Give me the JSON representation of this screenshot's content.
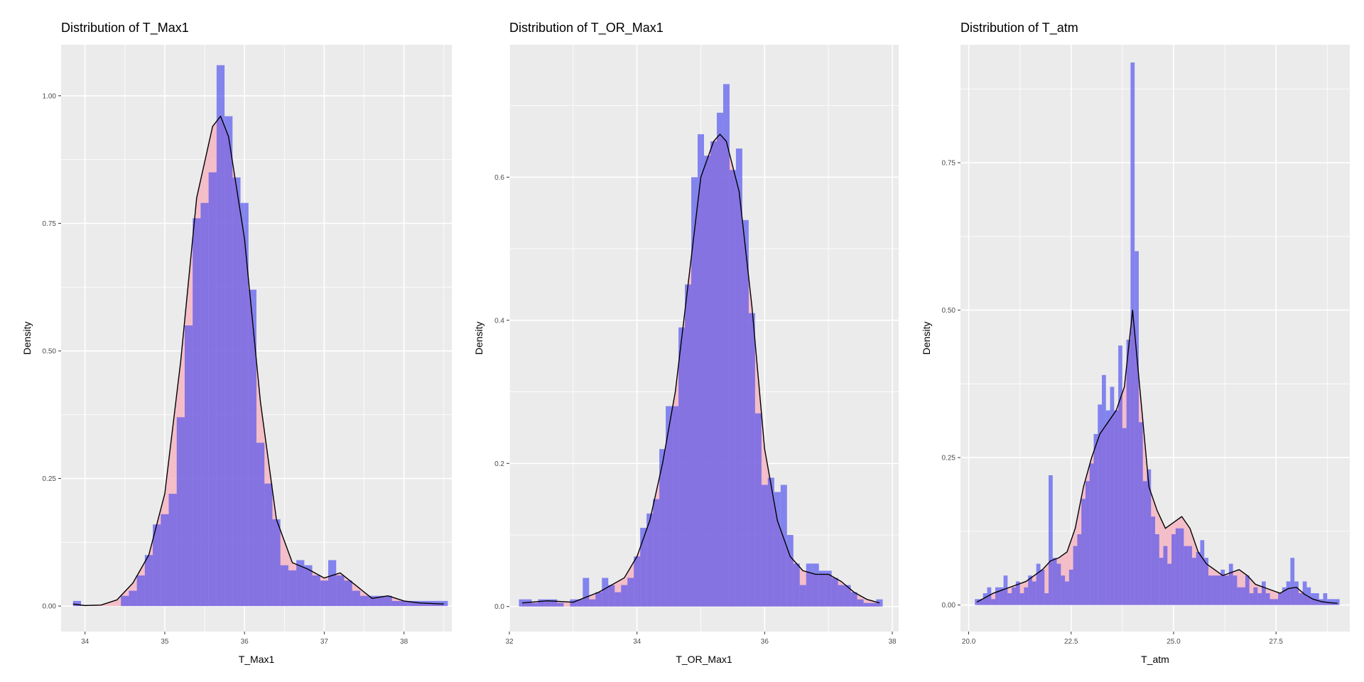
{
  "colors": {
    "histogram_fill": "#4c4cf0",
    "density_fill": "#f4b6c2",
    "density_line": "#000000",
    "panel_bg": "#ebebeb",
    "grid": "#ffffff"
  },
  "chart_data": [
    {
      "type": "histogram+density",
      "title": "Distribution of T_Max1",
      "xlabel": "T_Max1",
      "ylabel": "Density",
      "xlim": [
        33.7,
        38.6
      ],
      "ylim": [
        -0.05,
        1.1
      ],
      "xticks": [
        34,
        35,
        36,
        37,
        38
      ],
      "xtick_labels": [
        "34",
        "35",
        "36",
        "37",
        "38"
      ],
      "yticks": [
        0,
        0.25,
        0.5,
        0.75,
        1.0
      ],
      "ytick_labels": [
        "0.00",
        "0.25",
        "0.50",
        "0.75",
        "1.00"
      ],
      "bin_width": 0.1,
      "histogram": {
        "x": [
          33.9,
          34.0,
          34.1,
          34.2,
          34.3,
          34.4,
          34.5,
          34.6,
          34.7,
          34.8,
          34.9,
          35.0,
          35.1,
          35.2,
          35.3,
          35.4,
          35.5,
          35.6,
          35.7,
          35.8,
          35.9,
          36.0,
          36.1,
          36.2,
          36.3,
          36.4,
          36.5,
          36.6,
          36.7,
          36.8,
          36.9,
          37.0,
          37.1,
          37.2,
          37.3,
          37.4,
          37.5,
          37.6,
          37.7,
          37.8,
          37.9,
          38.0,
          38.1,
          38.2,
          38.3,
          38.4,
          38.5
        ],
        "density": [
          0.01,
          0,
          0,
          0,
          0,
          0,
          0.02,
          0.03,
          0.06,
          0.1,
          0.16,
          0.18,
          0.22,
          0.37,
          0.55,
          0.76,
          0.79,
          0.85,
          1.06,
          0.96,
          0.84,
          0.79,
          0.62,
          0.32,
          0.24,
          0.17,
          0.08,
          0.07,
          0.09,
          0.08,
          0.06,
          0.05,
          0.09,
          0.06,
          0.05,
          0.03,
          0.02,
          0.02,
          0.02,
          0.02,
          0.01,
          0.01,
          0.01,
          0.01,
          0.01,
          0.01,
          0.01
        ]
      },
      "density_curve": {
        "x": [
          33.85,
          34.0,
          34.2,
          34.4,
          34.6,
          34.8,
          35.0,
          35.2,
          35.4,
          35.6,
          35.7,
          35.8,
          36.0,
          36.2,
          36.4,
          36.6,
          36.8,
          37.0,
          37.2,
          37.4,
          37.6,
          37.8,
          38.0,
          38.2,
          38.5
        ],
        "y": [
          0.004,
          0.001,
          0.002,
          0.012,
          0.045,
          0.1,
          0.22,
          0.48,
          0.8,
          0.94,
          0.96,
          0.92,
          0.72,
          0.4,
          0.17,
          0.085,
          0.072,
          0.055,
          0.065,
          0.04,
          0.015,
          0.02,
          0.01,
          0.006,
          0.004
        ]
      }
    },
    {
      "type": "histogram+density",
      "title": "Distribution of T_OR_Max1",
      "xlabel": "T_OR_Max1",
      "ylabel": "Density",
      "xlim": [
        32.0,
        38.1
      ],
      "ylim": [
        -0.035,
        0.785
      ],
      "xticks": [
        32,
        34,
        36,
        38
      ],
      "xtick_labels": [
        "32",
        "34",
        "36",
        "38"
      ],
      "yticks": [
        0,
        0.2,
        0.4,
        0.6
      ],
      "ytick_labels": [
        "0.0",
        "0.2",
        "0.4",
        "0.6"
      ],
      "bin_width": 0.1,
      "histogram": {
        "x": [
          32.2,
          32.3,
          32.4,
          32.5,
          32.6,
          32.7,
          32.8,
          32.9,
          33.0,
          33.1,
          33.2,
          33.3,
          33.4,
          33.5,
          33.6,
          33.7,
          33.8,
          33.9,
          34.0,
          34.1,
          34.2,
          34.3,
          34.4,
          34.5,
          34.6,
          34.7,
          34.8,
          34.9,
          35.0,
          35.1,
          35.2,
          35.3,
          35.4,
          35.5,
          35.6,
          35.7,
          35.8,
          35.9,
          36.0,
          36.1,
          36.2,
          36.3,
          36.4,
          36.5,
          36.6,
          36.7,
          36.8,
          36.9,
          37.0,
          37.1,
          37.2,
          37.3,
          37.4,
          37.5,
          37.6,
          37.7,
          37.8
        ],
        "density": [
          0.01,
          0.01,
          0.005,
          0.01,
          0.01,
          0.01,
          0.005,
          0,
          0.01,
          0.01,
          0.04,
          0.01,
          0.02,
          0.04,
          0.03,
          0.02,
          0.03,
          0.04,
          0.07,
          0.11,
          0.13,
          0.15,
          0.22,
          0.28,
          0.28,
          0.39,
          0.45,
          0.6,
          0.66,
          0.63,
          0.65,
          0.69,
          0.73,
          0.61,
          0.64,
          0.54,
          0.41,
          0.27,
          0.17,
          0.18,
          0.16,
          0.17,
          0.1,
          0.06,
          0.03,
          0.06,
          0.06,
          0.05,
          0.05,
          0.04,
          0.03,
          0.03,
          0.02,
          0.01,
          0.005,
          0.005,
          0.01
        ]
      },
      "density_curve": {
        "x": [
          32.2,
          32.6,
          33.0,
          33.4,
          33.8,
          34.0,
          34.2,
          34.4,
          34.6,
          34.8,
          35.0,
          35.2,
          35.3,
          35.4,
          35.6,
          35.8,
          36.0,
          36.2,
          36.4,
          36.6,
          36.8,
          37.0,
          37.2,
          37.4,
          37.6,
          37.8
        ],
        "y": [
          0.005,
          0.008,
          0.006,
          0.02,
          0.04,
          0.07,
          0.12,
          0.2,
          0.3,
          0.45,
          0.6,
          0.65,
          0.66,
          0.65,
          0.58,
          0.42,
          0.22,
          0.12,
          0.07,
          0.05,
          0.045,
          0.045,
          0.035,
          0.02,
          0.01,
          0.005
        ]
      }
    },
    {
      "type": "histogram+density",
      "title": "Distribution of T_atm",
      "xlabel": "T_atm",
      "ylabel": "Density",
      "xlim": [
        19.8,
        29.3
      ],
      "ylim": [
        -0.045,
        0.95
      ],
      "xticks": [
        20.0,
        22.5,
        25.0,
        27.5
      ],
      "xtick_labels": [
        "20.0",
        "22.5",
        "25.0",
        "27.5"
      ],
      "yticks": [
        0,
        0.25,
        0.5,
        0.75
      ],
      "ytick_labels": [
        "0.00",
        "0.25",
        "0.50",
        "0.75"
      ],
      "bin_width": 0.1,
      "histogram": {
        "x": [
          20.2,
          20.3,
          20.4,
          20.5,
          20.6,
          20.7,
          20.8,
          20.9,
          21.0,
          21.1,
          21.2,
          21.3,
          21.4,
          21.5,
          21.6,
          21.7,
          21.8,
          21.9,
          22.0,
          22.1,
          22.2,
          22.3,
          22.4,
          22.5,
          22.6,
          22.7,
          22.8,
          22.9,
          23.0,
          23.1,
          23.2,
          23.3,
          23.4,
          23.5,
          23.6,
          23.7,
          23.8,
          23.9,
          24.0,
          24.1,
          24.2,
          24.3,
          24.4,
          24.5,
          24.6,
          24.7,
          24.8,
          24.9,
          25.0,
          25.1,
          25.2,
          25.3,
          25.4,
          25.5,
          25.6,
          25.7,
          25.8,
          25.9,
          26.0,
          26.1,
          26.2,
          26.3,
          26.4,
          26.5,
          26.6,
          26.7,
          26.8,
          26.9,
          27.0,
          27.1,
          27.2,
          27.3,
          27.4,
          27.5,
          27.6,
          27.7,
          27.8,
          27.9,
          28.0,
          28.1,
          28.2,
          28.3,
          28.4,
          28.5,
          28.6,
          28.7,
          28.8,
          28.9,
          29.0
        ],
        "density": [
          0.01,
          0.01,
          0.02,
          0.03,
          0.01,
          0.03,
          0.03,
          0.05,
          0.02,
          0.03,
          0.04,
          0.02,
          0.03,
          0.05,
          0.04,
          0.07,
          0.06,
          0.02,
          0.22,
          0.08,
          0.07,
          0.05,
          0.04,
          0.06,
          0.1,
          0.12,
          0.18,
          0.21,
          0.24,
          0.29,
          0.34,
          0.39,
          0.33,
          0.37,
          0.33,
          0.44,
          0.3,
          0.45,
          0.92,
          0.6,
          0.31,
          0.21,
          0.23,
          0.15,
          0.12,
          0.08,
          0.1,
          0.07,
          0.12,
          0.13,
          0.13,
          0.1,
          0.1,
          0.08,
          0.09,
          0.11,
          0.08,
          0.05,
          0.05,
          0.05,
          0.06,
          0.05,
          0.07,
          0.05,
          0.03,
          0.03,
          0.05,
          0.02,
          0.03,
          0.02,
          0.04,
          0.02,
          0.01,
          0.01,
          0.02,
          0.03,
          0.04,
          0.08,
          0.04,
          0.02,
          0.04,
          0.03,
          0.02,
          0.02,
          0.01,
          0.02,
          0.01,
          0.01,
          0.01
        ]
      },
      "density_curve": {
        "x": [
          20.2,
          20.6,
          21.0,
          21.4,
          21.8,
          22.0,
          22.2,
          22.4,
          22.6,
          22.8,
          23.0,
          23.2,
          23.4,
          23.6,
          23.8,
          24.0,
          24.2,
          24.4,
          24.6,
          24.8,
          25.0,
          25.2,
          25.4,
          25.6,
          25.8,
          26.0,
          26.2,
          26.4,
          26.6,
          26.8,
          27.0,
          27.2,
          27.4,
          27.6,
          27.8,
          28.0,
          28.2,
          28.4,
          28.6,
          28.8,
          29.0
        ],
        "y": [
          0.005,
          0.02,
          0.03,
          0.04,
          0.06,
          0.075,
          0.08,
          0.09,
          0.13,
          0.2,
          0.25,
          0.29,
          0.31,
          0.33,
          0.37,
          0.5,
          0.35,
          0.2,
          0.16,
          0.13,
          0.14,
          0.15,
          0.13,
          0.09,
          0.07,
          0.06,
          0.05,
          0.055,
          0.06,
          0.05,
          0.035,
          0.03,
          0.025,
          0.02,
          0.028,
          0.03,
          0.018,
          0.01,
          0.006,
          0.004,
          0.003
        ]
      }
    }
  ]
}
